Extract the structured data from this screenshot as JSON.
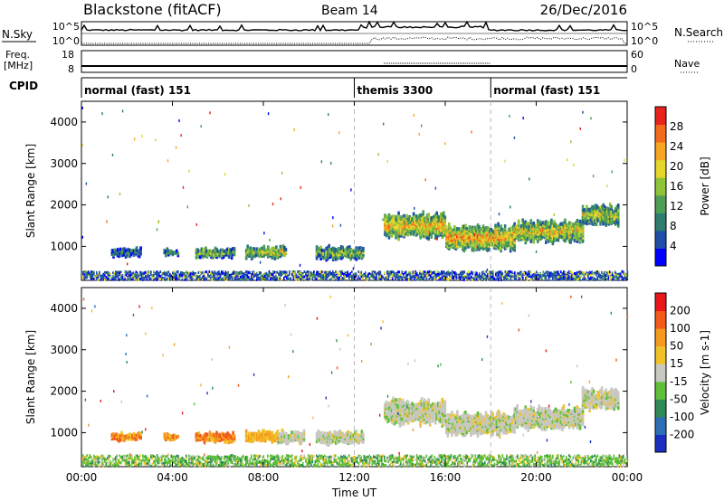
{
  "header": {
    "station": "Blackstone (fitACF)",
    "beam": "Beam 14",
    "date": "26/Dec/2016"
  },
  "summary": {
    "nsky_label": "N.Sky",
    "nsearch_label": "N.Search",
    "nave_label": "Nave",
    "freq_label_line1": "Freq.",
    "freq_label_line2": "[MHz]",
    "cpid_label": "CPID",
    "count_ticks": [
      "10^5",
      "10^0"
    ],
    "freq_ticks": [
      "18",
      "8"
    ],
    "nave_ticks": [
      "60",
      "0"
    ],
    "cpid_segments": [
      {
        "label": "normal (fast) 151",
        "start_h": 0,
        "end_h": 12
      },
      {
        "label": "themis 3300",
        "start_h": 12,
        "end_h": 18
      },
      {
        "label": "normal (fast) 151",
        "start_h": 18,
        "end_h": 24
      }
    ]
  },
  "axes": {
    "ylabel": "Slant Range [km]",
    "xlabel": "Time UT",
    "xticks": [
      "00:00",
      "04:00",
      "08:00",
      "12:00",
      "16:00",
      "20:00",
      "00:00"
    ],
    "yticks": [
      "1000",
      "2000",
      "3000",
      "4000"
    ]
  },
  "chart_data": [
    {
      "type": "heatmap",
      "param": "power",
      "colorbar_label": "Power [dB]",
      "colorbar_ticks": [
        "28",
        "24",
        "20",
        "16",
        "12",
        "8",
        "4"
      ],
      "colorbar_colors": [
        "#0000ff",
        "#1f4fa8",
        "#2e7d6e",
        "#4f9e55",
        "#8fc43a",
        "#e6d52a",
        "#f5a623",
        "#f26b1d",
        "#e8231d"
      ],
      "x_range_h": [
        0,
        24
      ],
      "y_range_km": [
        180,
        4500
      ],
      "scatter_echoes": [
        {
          "start_h": 1.3,
          "end_h": 2.6,
          "center_km": 850,
          "width_km": 140,
          "level": 0.3
        },
        {
          "start_h": 3.6,
          "end_h": 4.2,
          "center_km": 850,
          "width_km": 110,
          "level": 0.3
        },
        {
          "start_h": 5.0,
          "end_h": 6.7,
          "center_km": 840,
          "width_km": 180,
          "level": 0.5
        },
        {
          "start_h": 7.2,
          "end_h": 9.0,
          "center_km": 850,
          "width_km": 230,
          "level": 0.6
        },
        {
          "start_h": 10.3,
          "end_h": 12.4,
          "center_km": 840,
          "width_km": 260,
          "level": 0.5
        },
        {
          "start_h": 13.3,
          "end_h": 16.0,
          "center_km": 1500,
          "width_km": 550,
          "level": 0.75
        },
        {
          "start_h": 16.0,
          "end_h": 19.0,
          "center_km": 1200,
          "width_km": 500,
          "level": 0.8
        },
        {
          "start_h": 19.0,
          "end_h": 22.0,
          "center_km": 1350,
          "width_km": 450,
          "level": 0.7
        },
        {
          "start_h": 22.0,
          "end_h": 23.6,
          "center_km": 1750,
          "width_km": 420,
          "level": 0.6
        }
      ]
    },
    {
      "type": "heatmap",
      "param": "velocity",
      "colorbar_label": "Velocity [m s-1]",
      "colorbar_ticks": [
        "200",
        "100",
        "50",
        "15",
        "-15",
        "-50",
        "-100",
        "-200"
      ],
      "colorbar_colors": [
        "#1a2fbf",
        "#2e6eb5",
        "#2e8b57",
        "#5fbf3a",
        "#c8c8c0",
        "#f0c22a",
        "#f59a1e",
        "#f25a1a",
        "#e8171a"
      ],
      "x_range_h": [
        0,
        24
      ],
      "y_range_km": [
        180,
        4500
      ],
      "scatter_echoes": [
        {
          "start_h": 1.3,
          "end_h": 2.6,
          "center_km": 900,
          "width_km": 120,
          "vel_class": "orange"
        },
        {
          "start_h": 3.6,
          "end_h": 4.2,
          "center_km": 900,
          "width_km": 100,
          "vel_class": "orange"
        },
        {
          "start_h": 5.0,
          "end_h": 6.7,
          "center_km": 880,
          "width_km": 180,
          "vel_class": "orange"
        },
        {
          "start_h": 7.2,
          "end_h": 8.6,
          "center_km": 900,
          "width_km": 220,
          "vel_class": "yellow"
        },
        {
          "start_h": 8.6,
          "end_h": 9.8,
          "center_km": 880,
          "width_km": 230,
          "vel_class": "gray"
        },
        {
          "start_h": 10.3,
          "end_h": 12.4,
          "center_km": 880,
          "width_km": 260,
          "vel_class": "gray"
        },
        {
          "start_h": 13.3,
          "end_h": 16.0,
          "center_km": 1500,
          "width_km": 550,
          "vel_class": "gray"
        },
        {
          "start_h": 16.0,
          "end_h": 19.0,
          "center_km": 1200,
          "width_km": 500,
          "vel_class": "gray"
        },
        {
          "start_h": 19.0,
          "end_h": 22.0,
          "center_km": 1350,
          "width_km": 450,
          "vel_class": "gray"
        },
        {
          "start_h": 22.0,
          "end_h": 23.6,
          "center_km": 1800,
          "width_km": 420,
          "vel_class": "gray"
        }
      ]
    }
  ]
}
